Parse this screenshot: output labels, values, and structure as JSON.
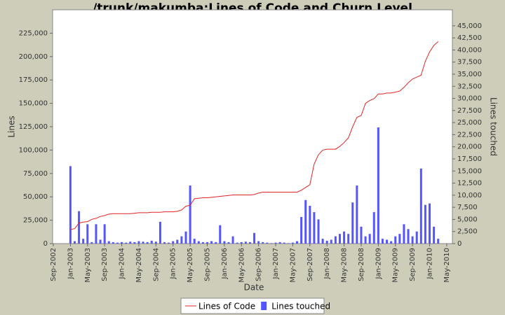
{
  "chart_data": {
    "type": "line-bar",
    "title": "/trunk/makumba:Lines of Code and Churn Level",
    "x_label": "Date",
    "y_label": "Lines",
    "y2_label": "Lines touched",
    "x": [
      "2003-01",
      "2003-02",
      "2003-03",
      "2003-04",
      "2003-05",
      "2003-06",
      "2003-07",
      "2003-08",
      "2003-09",
      "2003-10",
      "2003-11",
      "2003-12",
      "2004-01",
      "2004-02",
      "2004-03",
      "2004-04",
      "2004-05",
      "2004-06",
      "2004-07",
      "2004-08",
      "2004-09",
      "2004-10",
      "2004-11",
      "2004-12",
      "2005-01",
      "2005-02",
      "2005-03",
      "2005-04",
      "2005-05",
      "2005-06",
      "2005-07",
      "2005-08",
      "2005-09",
      "2005-10",
      "2005-11",
      "2005-12",
      "2006-01",
      "2006-02",
      "2006-03",
      "2006-04",
      "2006-05",
      "2006-06",
      "2006-07",
      "2006-08",
      "2006-09",
      "2006-10",
      "2006-11",
      "2006-12",
      "2007-01",
      "2007-02",
      "2007-03",
      "2007-04",
      "2007-05",
      "2007-06",
      "2007-07",
      "2007-08",
      "2007-09",
      "2007-10",
      "2007-11",
      "2007-12",
      "2008-01",
      "2008-02",
      "2008-03",
      "2008-04",
      "2008-05",
      "2008-06",
      "2008-07",
      "2008-08",
      "2008-09",
      "2008-10",
      "2008-11",
      "2008-12",
      "2009-01",
      "2009-02",
      "2009-03",
      "2009-04",
      "2009-05",
      "2009-06",
      "2009-07",
      "2009-08",
      "2009-09",
      "2009-10",
      "2009-11",
      "2009-12",
      "2010-01",
      "2010-02",
      "2010-03"
    ],
    "series": [
      {
        "name": "Lines of Code",
        "color": "#e02424",
        "kind": "line",
        "values": [
          15000,
          16000,
          22000,
          23000,
          23500,
          26000,
          27000,
          29000,
          30000,
          31500,
          32000,
          32000,
          32000,
          32000,
          32000,
          32500,
          33000,
          33000,
          33000,
          33500,
          33500,
          33500,
          34000,
          34000,
          34000,
          34500,
          36000,
          40000,
          41000,
          48000,
          48500,
          49000,
          49000,
          49500,
          50000,
          50500,
          51000,
          51500,
          52000,
          52000,
          52000,
          52000,
          52000,
          52500,
          54000,
          55000,
          55000,
          55000,
          55000,
          55000,
          55000,
          55000,
          55000,
          55000,
          57000,
          60000,
          63000,
          85000,
          95000,
          100000,
          101000,
          101000,
          101000,
          104000,
          108000,
          113000,
          125000,
          135000,
          137000,
          150000,
          153000,
          155000,
          160000,
          160000,
          161000,
          161000,
          162000,
          163000,
          167000,
          172000,
          176000,
          178000,
          180000,
          195000,
          205000,
          212000,
          216000
        ]
      },
      {
        "name": "Lines touched",
        "color": "#5555ff",
        "kind": "bar",
        "axis": "y2",
        "values": [
          16000,
          500,
          6700,
          1000,
          4000,
          300,
          4000,
          800,
          4000,
          500,
          300,
          200,
          300,
          200,
          400,
          300,
          500,
          400,
          300,
          600,
          400,
          4500,
          300,
          200,
          500,
          800,
          1500,
          2500,
          12000,
          1000,
          500,
          300,
          300,
          500,
          300,
          3800,
          500,
          300,
          1500,
          200,
          300,
          400,
          300,
          2200,
          500,
          300,
          200,
          100,
          200,
          300,
          200,
          100,
          200,
          500,
          5500,
          9000,
          7800,
          6500,
          5000,
          1000,
          600,
          800,
          1500,
          2000,
          2500,
          2000,
          8500,
          12000,
          3500,
          1500,
          2000,
          6500,
          24000,
          1000,
          800,
          500,
          1500,
          2000,
          4000,
          3000,
          1500,
          2500,
          15500,
          8000,
          8300,
          3500,
          1000
        ]
      }
    ],
    "xlim": [
      "2002-09",
      "2010-06"
    ],
    "xticks": [
      {
        "value": "2002-09",
        "label": "Sep-2002"
      },
      {
        "value": "2003-01",
        "label": "Jan-2003"
      },
      {
        "value": "2003-05",
        "label": "May-2003"
      },
      {
        "value": "2003-09",
        "label": "Sep-2003"
      },
      {
        "value": "2004-01",
        "label": "Jan-2004"
      },
      {
        "value": "2004-05",
        "label": "May-2004"
      },
      {
        "value": "2004-09",
        "label": "Sep-2004"
      },
      {
        "value": "2005-01",
        "label": "Jan-2005"
      },
      {
        "value": "2005-05",
        "label": "May-2005"
      },
      {
        "value": "2005-09",
        "label": "Sep-2005"
      },
      {
        "value": "2006-01",
        "label": "Jan-2006"
      },
      {
        "value": "2006-05",
        "label": "May-2006"
      },
      {
        "value": "2006-09",
        "label": "Sep-2006"
      },
      {
        "value": "2007-01",
        "label": "Jan-2007"
      },
      {
        "value": "2007-05",
        "label": "May-2007"
      },
      {
        "value": "2007-09",
        "label": "Sep-2007"
      },
      {
        "value": "2008-01",
        "label": "Jan-2008"
      },
      {
        "value": "2008-05",
        "label": "May-2008"
      },
      {
        "value": "2008-09",
        "label": "Sep-2008"
      },
      {
        "value": "2009-01",
        "label": "Jan-2009"
      },
      {
        "value": "2009-05",
        "label": "May-2009"
      },
      {
        "value": "2009-09",
        "label": "Sep-2009"
      },
      {
        "value": "2010-01",
        "label": "Jan-2010"
      },
      {
        "value": "2010-05",
        "label": "May-2010"
      }
    ],
    "ylim": [
      0,
      250000
    ],
    "yticks": [
      0,
      {
        "value": 25000,
        "label": "25,000"
      },
      {
        "value": 50000,
        "label": "50,000"
      },
      {
        "value": 75000,
        "label": "75,000"
      },
      {
        "value": 100000,
        "label": "100,000"
      },
      {
        "value": 125000,
        "label": "125,000"
      },
      {
        "value": 150000,
        "label": "150,000"
      },
      {
        "value": 175000,
        "label": "175,000"
      },
      {
        "value": 200000,
        "label": "200,000"
      },
      {
        "value": 225000,
        "label": "225,000"
      }
    ],
    "y2lim": [
      0,
      48300
    ],
    "y2ticks": [
      0,
      {
        "value": 2500,
        "label": "2,500"
      },
      {
        "value": 5000,
        "label": "5,000"
      },
      {
        "value": 7500,
        "label": "7,500"
      },
      {
        "value": 10000,
        "label": "10,000"
      },
      {
        "value": 12500,
        "label": "12,500"
      },
      {
        "value": 15000,
        "label": "15,000"
      },
      {
        "value": 17500,
        "label": "17,500"
      },
      {
        "value": 20000,
        "label": "20,000"
      },
      {
        "value": 22500,
        "label": "22,500"
      },
      {
        "value": 25000,
        "label": "25,000"
      },
      {
        "value": 27500,
        "label": "27,500"
      },
      {
        "value": 30000,
        "label": "30,000"
      },
      {
        "value": 32500,
        "label": "32,500"
      },
      {
        "value": 35000,
        "label": "35,000"
      },
      {
        "value": 37500,
        "label": "37,500"
      },
      {
        "value": 40000,
        "label": "40,000"
      },
      {
        "value": 42500,
        "label": "42,500"
      },
      {
        "value": 45000,
        "label": "45,000"
      }
    ],
    "legend": "bottom",
    "grid": false
  }
}
